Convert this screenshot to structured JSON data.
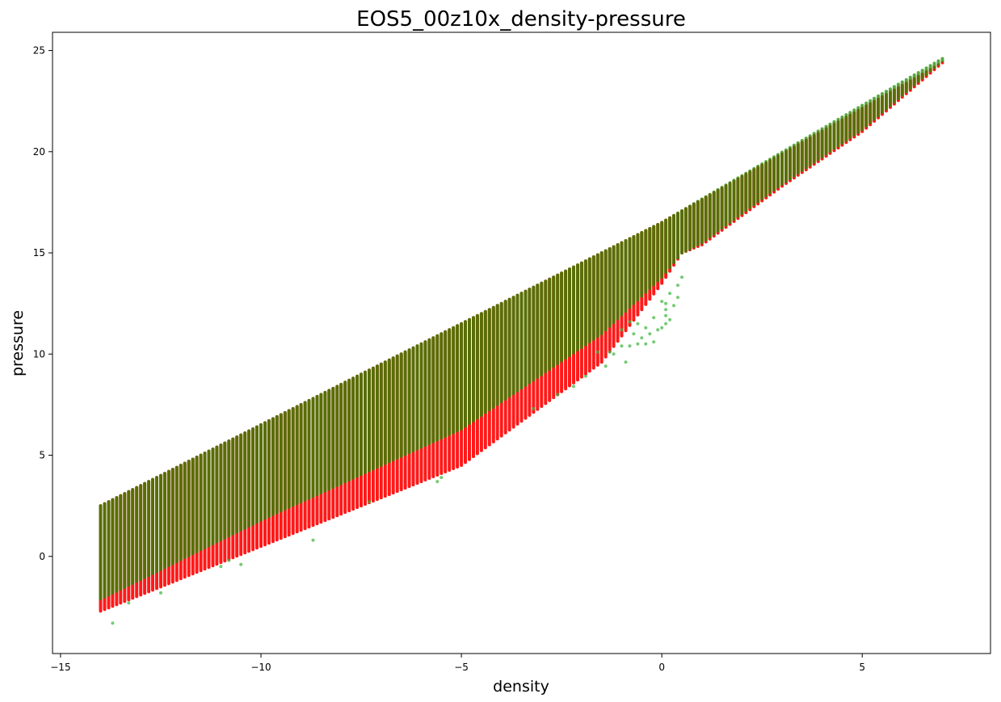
{
  "chart_data": {
    "type": "scatter",
    "title": "EOS5_00z10x_density-pressure",
    "xlabel": "density",
    "ylabel": "pressure",
    "xlim": [
      -15.2,
      8.2
    ],
    "ylim": [
      -4.8,
      25.9
    ],
    "xticks": [
      -15,
      -10,
      -5,
      0,
      5
    ],
    "yticks": [
      0,
      5,
      10,
      15,
      20,
      25
    ],
    "grid": false,
    "legend": "none",
    "marker_size": 2,
    "series": [
      {
        "color": "#ff0000",
        "alpha": 0.9,
        "description": "dense columns of points; x from -14 to 7 in steps of 0.1; for each x, y spans from lower bound to upper bound",
        "x_range": [
          -14,
          7
        ],
        "x_step": 0.1,
        "y_upper_anchors": [
          [
            -14,
            2.5
          ],
          [
            0,
            16.5
          ],
          [
            7,
            24.4
          ]
        ],
        "y_lower_anchors": [
          [
            -14,
            -2.7
          ],
          [
            -10,
            0.5
          ],
          [
            -5,
            4.5
          ],
          [
            -1.5,
            9.6
          ],
          [
            0,
            13.5
          ],
          [
            0.5,
            15.0
          ],
          [
            1,
            15.4
          ],
          [
            3,
            18.3
          ],
          [
            5,
            21.0
          ],
          [
            7,
            24.4
          ]
        ]
      },
      {
        "color": "#228b00",
        "alpha": 0.75,
        "description": "same grid as red, lower bound offset upward in the left region",
        "x_range": [
          -14,
          7
        ],
        "x_step": 0.1,
        "y_upper_anchors": [
          [
            -14,
            2.5
          ],
          [
            0,
            16.5
          ],
          [
            7,
            24.6
          ]
        ],
        "y_lower_anchors": [
          [
            -14,
            -2.1
          ],
          [
            -10,
            1.8
          ],
          [
            -5,
            6.3
          ],
          [
            -1.5,
            11.0
          ],
          [
            0,
            13.8
          ],
          [
            0.5,
            15.0
          ],
          [
            1,
            15.5
          ],
          [
            3,
            18.4
          ],
          [
            5,
            21.1
          ],
          [
            7,
            24.5
          ]
        ]
      },
      {
        "name": "green outliers",
        "color": "#3cb43c",
        "alpha": 0.7,
        "points": [
          [
            -13.7,
            -3.3
          ],
          [
            -13.3,
            -2.3
          ],
          [
            -12.5,
            -1.8
          ],
          [
            -11.0,
            -0.5
          ],
          [
            -10.8,
            -0.2
          ],
          [
            -10.5,
            -0.4
          ],
          [
            -8.7,
            0.8
          ],
          [
            -7.3,
            2.7
          ],
          [
            -5.6,
            3.7
          ],
          [
            -5.5,
            3.9
          ],
          [
            -3.2,
            7.3
          ],
          [
            -2.6,
            8.0
          ],
          [
            -2.2,
            8.4
          ],
          [
            -1.9,
            8.9
          ],
          [
            -1.4,
            9.4
          ],
          [
            -0.9,
            9.6
          ],
          [
            -1.6,
            10.1
          ],
          [
            -1.3,
            10.1
          ],
          [
            -1.2,
            10.0
          ],
          [
            -1.0,
            10.4
          ],
          [
            -0.8,
            10.4
          ],
          [
            -0.6,
            10.5
          ],
          [
            -0.4,
            10.5
          ],
          [
            -0.2,
            10.6
          ],
          [
            -0.5,
            10.8
          ],
          [
            -0.3,
            11.0
          ],
          [
            -0.1,
            11.2
          ],
          [
            0.0,
            11.3
          ],
          [
            0.1,
            11.5
          ],
          [
            0.1,
            11.9
          ],
          [
            0.1,
            12.2
          ],
          [
            0.1,
            12.5
          ],
          [
            0.0,
            12.6
          ],
          [
            0.2,
            13.0
          ],
          [
            0.4,
            13.4
          ],
          [
            0.5,
            13.8
          ],
          [
            0.4,
            12.8
          ],
          [
            0.3,
            12.4
          ],
          [
            -0.2,
            11.8
          ],
          [
            -0.4,
            11.3
          ],
          [
            -0.7,
            11.0
          ],
          [
            -0.6,
            11.5
          ],
          [
            -0.8,
            11.6
          ],
          [
            -1.0,
            11.2
          ],
          [
            0.2,
            11.7
          ]
        ]
      }
    ]
  }
}
